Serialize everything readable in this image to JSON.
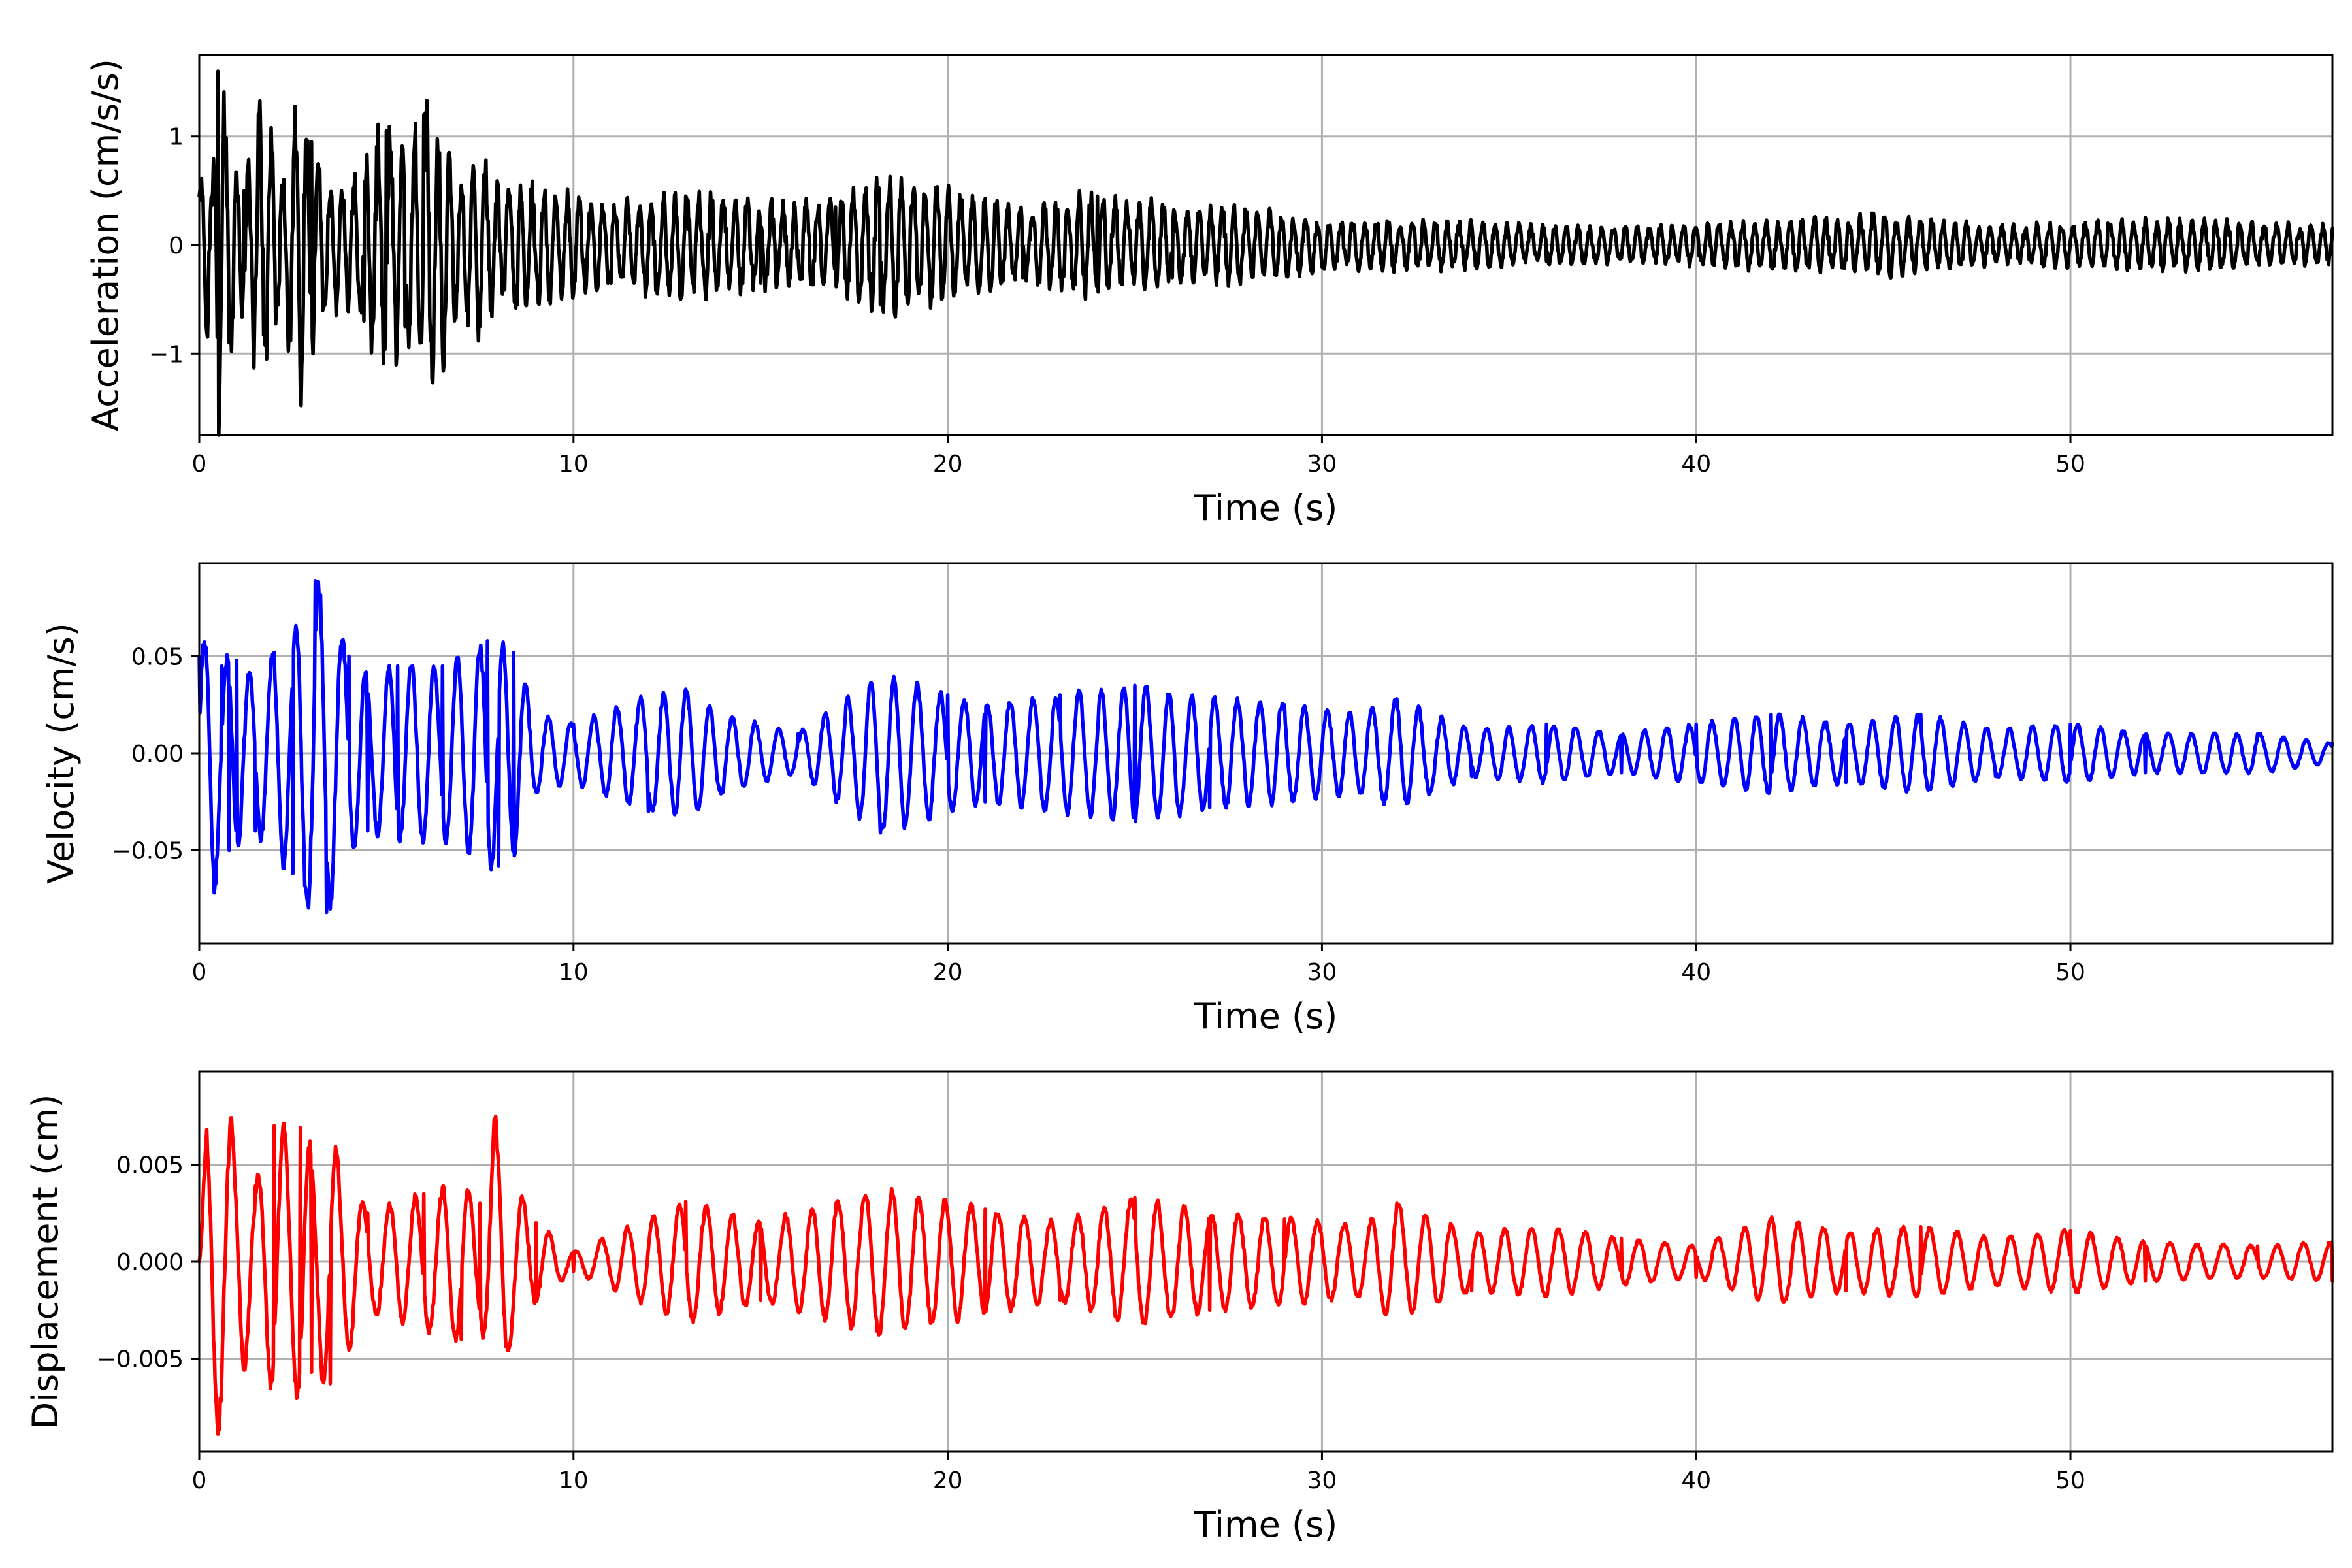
{
  "chart_data": [
    {
      "type": "line",
      "name": "acceleration",
      "xlabel": "Time (s)",
      "ylabel": "Acceleration (cm/s/s)",
      "xlim": [
        0,
        57
      ],
      "ylim": [
        -1.75,
        1.75
      ],
      "xticks": [
        0,
        10,
        20,
        30,
        40,
        50
      ],
      "xtick_labels": [
        "0",
        "10",
        "20",
        "30",
        "40",
        "50"
      ],
      "yticks": [
        -1,
        0,
        1
      ],
      "ytick_labels": [
        "−1",
        "0",
        "1"
      ],
      "grid": true,
      "color": "#000000",
      "series": [
        {
          "x": [
            0,
            0.2,
            0.35,
            0.5,
            0.8,
            1.2,
            1.6,
            1.8,
            2.2,
            2.7,
            3.0,
            3.3,
            3.8,
            4.4,
            5.0,
            5.5,
            6.0,
            6.5,
            7.0,
            7.5,
            8.0,
            8.5,
            9.5,
            11,
            13,
            15,
            17,
            18.2,
            20,
            22,
            24,
            26,
            28,
            30,
            33,
            36,
            39,
            42,
            45,
            48,
            51,
            54,
            57
          ],
          "values": [
            0.45,
            -0.8,
            0.5,
            1.6,
            -0.9,
            0.5,
            1.15,
            -1.05,
            0.55,
            -1.3,
            0.95,
            -0.6,
            0.5,
            -0.7,
            1.05,
            -0.75,
            1.2,
            -0.95,
            0.55,
            -0.75,
            0.5,
            -0.55,
            0.45,
            -0.35,
            0.45,
            -0.35,
            0.35,
            -0.55,
            0.45,
            -0.3,
            0.45,
            -0.3,
            0.3,
            -0.2,
            0.2,
            -0.15,
            0.15,
            -0.2,
            0.25,
            -0.15,
            0.2,
            -0.2,
            0.15
          ]
        }
      ]
    },
    {
      "type": "line",
      "name": "velocity",
      "xlabel": "Time (s)",
      "ylabel": "Velocity (cm/s)",
      "xlim": [
        0,
        57
      ],
      "ylim": [
        -0.098,
        0.098
      ],
      "xticks": [
        0,
        10,
        20,
        30,
        40,
        50
      ],
      "xtick_labels": [
        "0",
        "10",
        "20",
        "30",
        "40",
        "50"
      ],
      "yticks": [
        -0.05,
        0,
        0.05
      ],
      "ytick_labels": [
        "−0.05",
        "0.00",
        "0.05"
      ],
      "grid": true,
      "color": "#0000ff",
      "series": [
        {
          "x": [
            0,
            0.1,
            0.4,
            0.6,
            0.8,
            1.0,
            1.5,
            2.0,
            2.5,
            3.1,
            3.4,
            4.0,
            4.5,
            5.3,
            6.0,
            6.5,
            7.2,
            7.7,
            8.0,
            8.4,
            9.0,
            10,
            12,
            13,
            14,
            16,
            18.2,
            20,
            21,
            23,
            25,
            27,
            29,
            31,
            32,
            34,
            36,
            38,
            40,
            42,
            44,
            46,
            48,
            50,
            52,
            55,
            57
          ],
          "values": [
            0.05,
            0.056,
            -0.072,
            0.045,
            -0.05,
            0.048,
            -0.04,
            0.052,
            -0.062,
            0.089,
            -0.082,
            0.05,
            -0.04,
            0.045,
            -0.045,
            0.045,
            -0.05,
            0.058,
            -0.058,
            0.052,
            -0.02,
            0.015,
            -0.03,
            0.033,
            -0.02,
            0.01,
            -0.041,
            0.03,
            -0.025,
            0.03,
            0.035,
            -0.028,
            0.025,
            -0.02,
            0.028,
            -0.012,
            0.015,
            -0.01,
            0.015,
            0.02,
            -0.015,
            0.02,
            -0.012,
            0.015,
            -0.01,
            0.01,
            0.005
          ]
        }
      ]
    },
    {
      "type": "line",
      "name": "displacement",
      "xlabel": "Time (s)",
      "ylabel": "Displacement (cm)",
      "xlim": [
        0,
        57
      ],
      "ylim": [
        -0.0098,
        0.0098
      ],
      "xticks": [
        0,
        10,
        20,
        30,
        40,
        50
      ],
      "xtick_labels": [
        "0",
        "10",
        "20",
        "30",
        "40",
        "50"
      ],
      "yticks": [
        -0.005,
        0,
        0.005
      ],
      "ytick_labels": [
        "−0.005",
        "0.000",
        "0.005"
      ],
      "grid": true,
      "color": "#ff0000",
      "series": [
        {
          "x": [
            0,
            0.2,
            0.5,
            1.5,
            2.0,
            2.7,
            3.0,
            3.5,
            4.5,
            6.0,
            7.0,
            7.5,
            7.9,
            8.3,
            9.0,
            10,
            13,
            15,
            18.2,
            21,
            23,
            25,
            27,
            29,
            31,
            32,
            34,
            36,
            38,
            40,
            42,
            44,
            46,
            48,
            50,
            52,
            55,
            57
          ],
          "values": [
            0.0,
            0.0068,
            -0.0089,
            0.0039,
            0.007,
            0.0069,
            -0.0057,
            -0.0063,
            0.0025,
            0.0035,
            -0.004,
            0.003,
            0.0073,
            -0.0043,
            0.002,
            -0.0005,
            0.0031,
            -0.002,
            -0.0037,
            0.0027,
            -0.002,
            0.0033,
            -0.0025,
            0.0022,
            -0.0018,
            0.003,
            -0.0015,
            -0.0018,
            0.0012,
            -0.0008,
            0.0022,
            -0.0015,
            0.0018,
            -0.0012,
            0.0016,
            -0.001,
            0.0008,
            -0.001
          ]
        }
      ]
    }
  ]
}
